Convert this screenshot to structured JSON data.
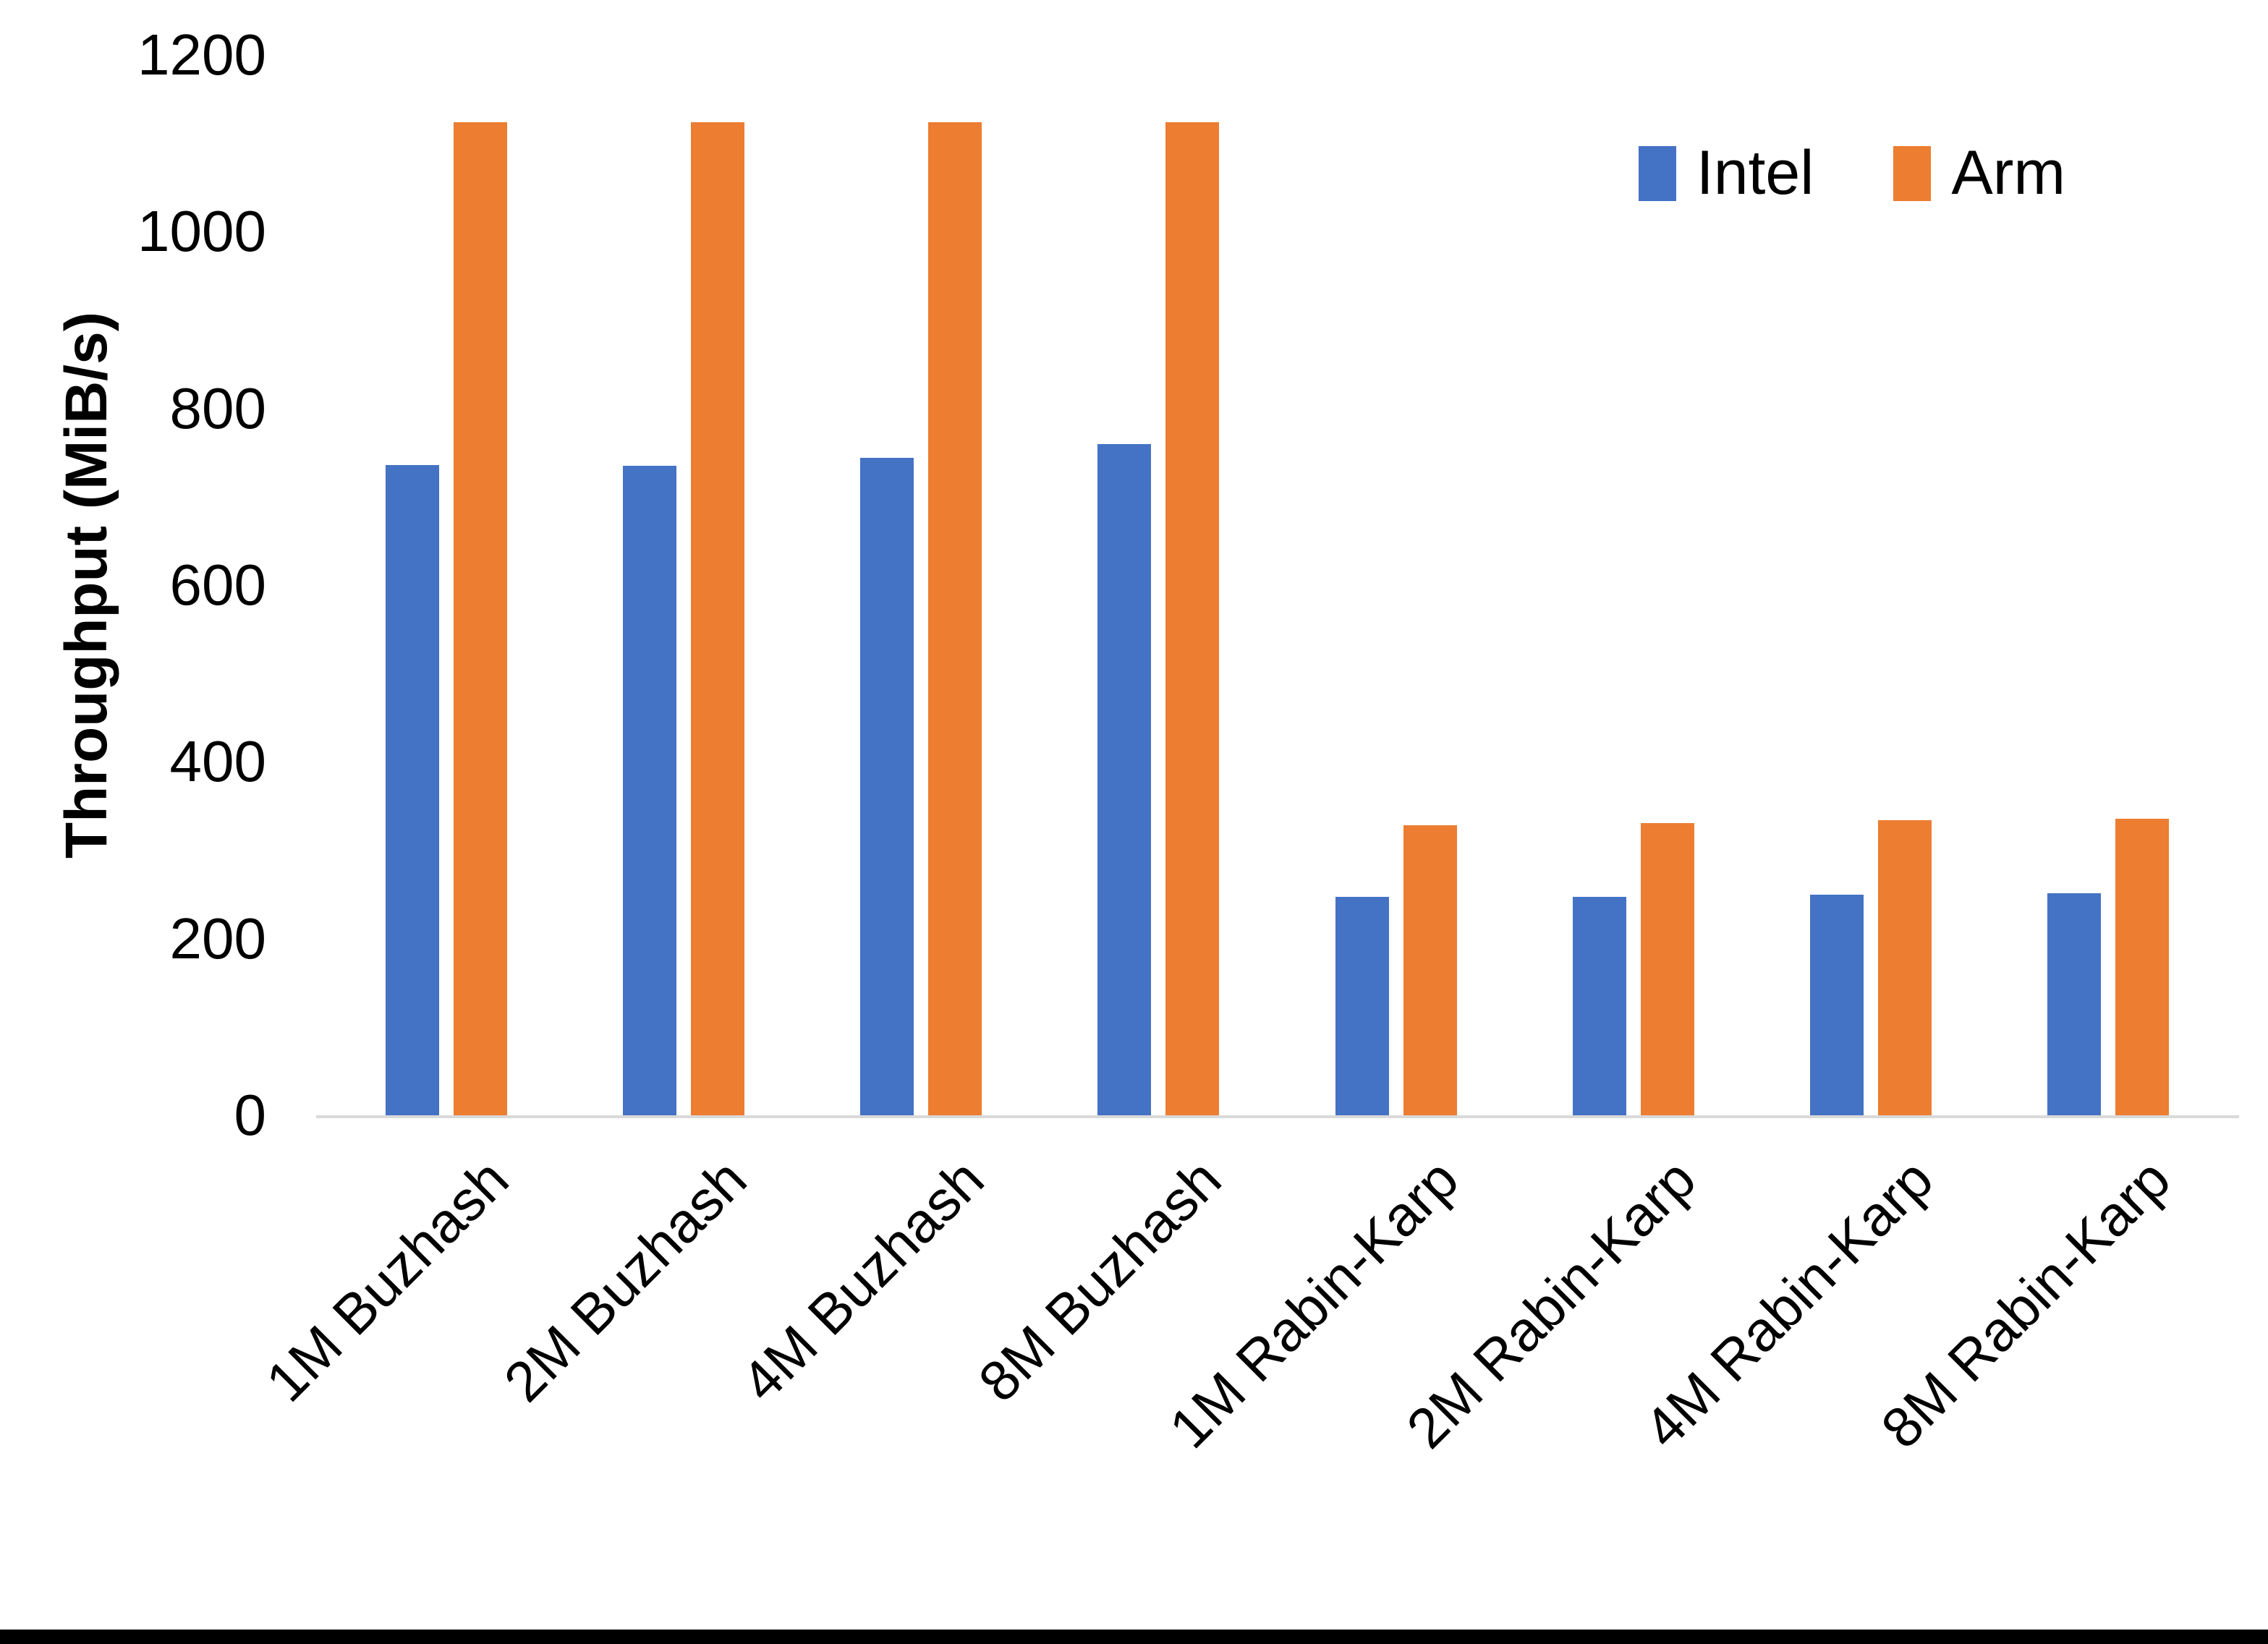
{
  "chart_data": {
    "type": "bar",
    "title": "",
    "xlabel": "",
    "ylabel": "Throughput (MiB/s)",
    "ylim": [
      0,
      1200
    ],
    "yticks": [
      0,
      200,
      400,
      600,
      800,
      1000,
      1200
    ],
    "grid": false,
    "legend_position": "top-right",
    "categories": [
      "1M Buzhash",
      "2M Buzhash",
      "4M Buzhash",
      "8M Buzhash",
      "1M Rabin-Karp",
      "2M Rabin-Karp",
      "4M Rabin-Karp",
      "8M Rabin-Karp"
    ],
    "series": [
      {
        "name": "Intel",
        "color": "#4472C4",
        "values": [
          736,
          735,
          744,
          760,
          247,
          247,
          250,
          251
        ]
      },
      {
        "name": "Arm",
        "color": "#ED7D31",
        "values": [
          1124,
          1124,
          1124,
          1124,
          328,
          331,
          334,
          336
        ]
      }
    ]
  }
}
